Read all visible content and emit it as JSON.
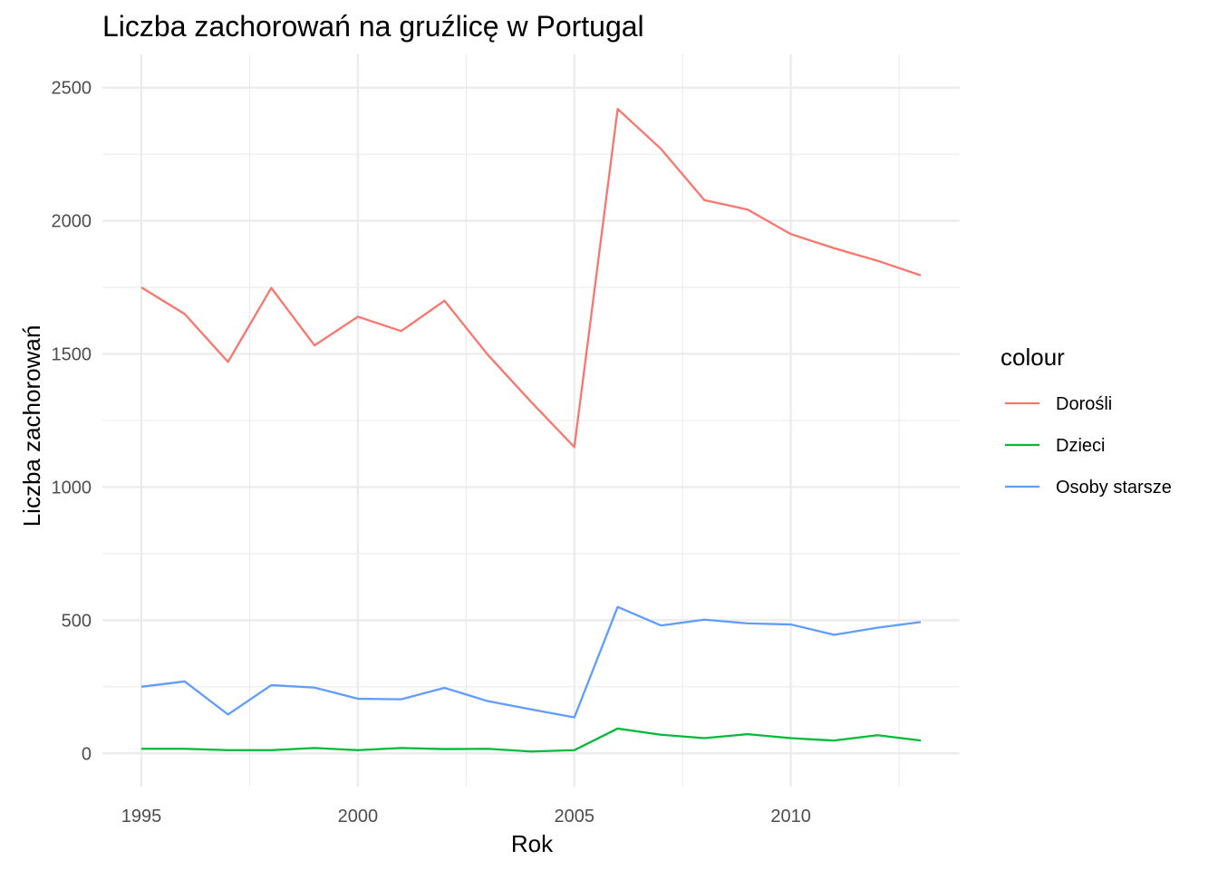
{
  "chart_data": {
    "type": "line",
    "title": "Liczba zachorowań na gruźlicę w Portugal",
    "xlabel": "Rok",
    "ylabel": "Liczba zachorowań",
    "xlim": [
      1995,
      2013
    ],
    "ylim": [
      0,
      2500
    ],
    "x_ticks": [
      1995,
      2000,
      2005,
      2010
    ],
    "y_ticks": [
      0,
      500,
      1000,
      1500,
      2000,
      2500
    ],
    "grid": true,
    "legend": {
      "title": "colour",
      "position": "right"
    },
    "x": [
      1995,
      1996,
      1997,
      1998,
      1999,
      2000,
      2001,
      2002,
      2003,
      2004,
      2005,
      2006,
      2007,
      2008,
      2009,
      2010,
      2011,
      2012,
      2013
    ],
    "series": [
      {
        "name": "Dorośli",
        "color": "#F8766D",
        "values": [
          1750,
          1650,
          1470,
          1748,
          1532,
          1640,
          1586,
          1700,
          1497,
          1320,
          1150,
          2420,
          2270,
          2078,
          2042,
          1950,
          1897,
          1850,
          1795
        ]
      },
      {
        "name": "Dzieci",
        "color": "#00BA38",
        "values": [
          17,
          17,
          12,
          12,
          20,
          12,
          20,
          16,
          17,
          7,
          12,
          93,
          70,
          57,
          72,
          57,
          48,
          68,
          48
        ]
      },
      {
        "name": "Osoby starsze",
        "color": "#619CFF",
        "values": [
          250,
          270,
          146,
          256,
          247,
          205,
          203,
          246,
          196,
          165,
          135,
          550,
          480,
          502,
          488,
          484,
          445,
          472,
          493
        ]
      }
    ]
  }
}
